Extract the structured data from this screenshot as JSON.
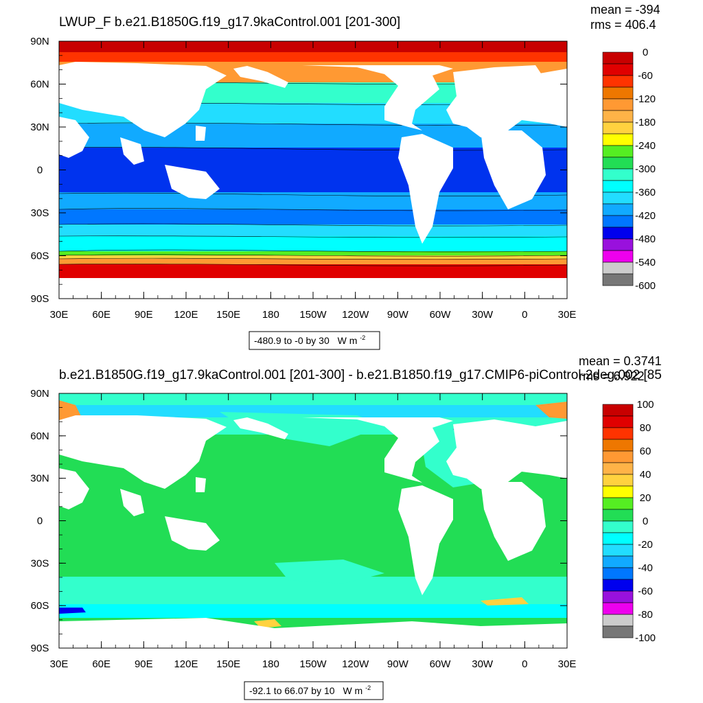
{
  "chart_data": [
    {
      "type": "heatmap",
      "title": "LWUP_F b.e21.B1850G.f19_g17.9kaControl.001 [201-300]",
      "stats": {
        "mean": "mean = -394",
        "rms": "rms = 406.4"
      },
      "x_ticks": [
        "30E",
        "60E",
        "90E",
        "120E",
        "150E",
        "180",
        "150W",
        "120W",
        "90W",
        "60W",
        "30W",
        "0",
        "30E"
      ],
      "y_ticks": [
        "90N",
        "60N",
        "30N",
        "0",
        "30S",
        "60S",
        "90S"
      ],
      "xlim": [
        30,
        390
      ],
      "ylim": [
        -90,
        90
      ],
      "colorbar": {
        "labels": [
          "0",
          "-60",
          "-120",
          "-180",
          "-240",
          "-300",
          "-360",
          "-420",
          "-480",
          "-540",
          "-600"
        ],
        "colors": [
          "#c80000",
          "#e00000",
          "#ff3300",
          "#ee7700",
          "#ff9933",
          "#ffb347",
          "#ffd23f",
          "#ffff00",
          "#55ee22",
          "#22dd55",
          "#33ffcc",
          "#00ffff",
          "#22ddff",
          "#11aaff",
          "#0077ff",
          "#0000ee",
          "#9911dd",
          "#ee00ee",
          "#cccccc",
          "#777777"
        ]
      },
      "range_label": "-480.9 to -0 by 30",
      "units": "W m",
      "units_sup": "-2"
    },
    {
      "type": "heatmap",
      "title": "b.e21.B1850G.f19_g17.9kaControl.001 [201-300] - b.e21.B1850.f19_g17.CMIP6-piControl-2deg.002 [85",
      "stats": {
        "mean": "mean = 0.3741",
        "rms": "rms = 6.922"
      },
      "x_ticks": [
        "30E",
        "60E",
        "90E",
        "120E",
        "150E",
        "180",
        "150W",
        "120W",
        "90W",
        "60W",
        "30W",
        "0",
        "30E"
      ],
      "y_ticks": [
        "90N",
        "60N",
        "30N",
        "0",
        "30S",
        "60S",
        "90S"
      ],
      "xlim": [
        30,
        390
      ],
      "ylim": [
        -90,
        90
      ],
      "colorbar": {
        "labels": [
          "100",
          "80",
          "60",
          "40",
          "20",
          "0",
          "-20",
          "-40",
          "-60",
          "-80",
          "-100"
        ],
        "colors": [
          "#c80000",
          "#e00000",
          "#ff3300",
          "#ee7700",
          "#ff9933",
          "#ffb347",
          "#ffd23f",
          "#ffff00",
          "#55ee22",
          "#22dd55",
          "#33ffcc",
          "#00ffff",
          "#22ddff",
          "#11aaff",
          "#0077ff",
          "#0000ee",
          "#9911dd",
          "#ee00ee",
          "#cccccc",
          "#777777"
        ]
      },
      "range_label": "-92.1 to 66.07 by 10",
      "units": "W m",
      "units_sup": "-2"
    }
  ]
}
